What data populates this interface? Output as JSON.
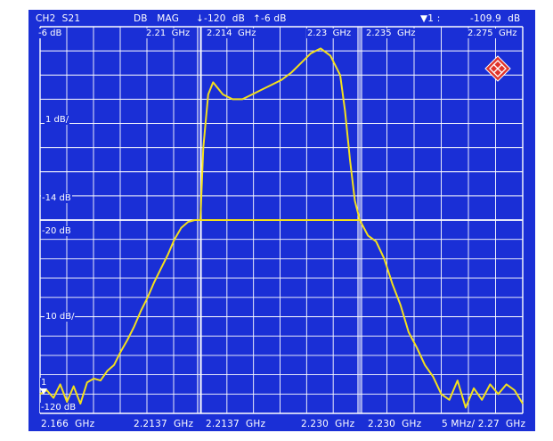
{
  "header": {
    "channel": "CH2  S21",
    "format": "DB   MAG",
    "ref_bottom": "↓-120  dB",
    "ref_top": "↑-6 dB",
    "marker_symbol": "▼1 :",
    "marker_value": "-109.9  dB"
  },
  "upper_panel": {
    "top_label": "-6 dB",
    "scale_label": "1 dB/",
    "bottom_label": "-14 dB",
    "freq_labels": [
      "2.21  GHz",
      "2.214  GHz",
      "2.23  GHz",
      "2.235  GHz",
      "2.275  GHz"
    ]
  },
  "lower_panel": {
    "top_label": "-20 dB",
    "scale_label": "10 dB/",
    "bottom_label": "-120 dB",
    "marker_tag": "1"
  },
  "footer": {
    "labels": [
      "2.166  GHz",
      "2.2137  GHz",
      "2.2137  GHz",
      "2.230  GHz",
      "2.230  GHz",
      "5 MHz/ 2.27  GHz"
    ]
  },
  "colors": {
    "screen_bg": "#1a2fd6",
    "grid": "#ffffff",
    "trace": "#f4e01c",
    "logo": "#e0332a"
  },
  "logo_icon": "rohde-schwarz-diamond-logo",
  "chart_data": {
    "type": "line",
    "title": "",
    "upper_plot": {
      "ylabel": "",
      "ylim_db": [
        -14,
        -6
      ],
      "y_per_div_db": 1,
      "x_ghz": [
        2.2137,
        2.214,
        2.2145,
        2.215,
        2.216,
        2.217,
        2.218,
        2.219,
        2.22,
        2.221,
        2.222,
        2.223,
        2.224,
        2.225,
        2.226,
        2.227,
        2.228,
        2.2285,
        2.229,
        2.2295,
        2.23
      ],
      "y_db": [
        -14.0,
        -11.0,
        -8.8,
        -8.3,
        -8.8,
        -9.0,
        -9.0,
        -8.8,
        -8.6,
        -8.4,
        -8.2,
        -7.9,
        -7.5,
        -7.1,
        -6.9,
        -7.2,
        -8.0,
        -9.5,
        -11.5,
        -13.2,
        -14.0
      ]
    },
    "lower_plot": {
      "ylabel": "",
      "ylim_db": [
        -120,
        -20
      ],
      "y_per_div_db": 10,
      "x_ghz": [
        2.166,
        2.168,
        2.17,
        2.172,
        2.174,
        2.176,
        2.178,
        2.18,
        2.182,
        2.184,
        2.186,
        2.188,
        2.19,
        2.192,
        2.194,
        2.196,
        2.198,
        2.2,
        2.202,
        2.204,
        2.206,
        2.208,
        2.21,
        2.212,
        2.2137,
        2.214,
        2.22,
        2.23,
        2.2305,
        2.232,
        2.234,
        2.236,
        2.238,
        2.24,
        2.242,
        2.244,
        2.246,
        2.248,
        2.25,
        2.252,
        2.254,
        2.256,
        2.258,
        2.26,
        2.262,
        2.264,
        2.266,
        2.268,
        2.27
      ],
      "y_db": [
        -110,
        -108,
        -112,
        -105,
        -114,
        -106,
        -115,
        -104,
        -102,
        -103,
        -98,
        -95,
        -88,
        -82,
        -75,
        -67,
        -60,
        -52,
        -45,
        -38,
        -30,
        -24,
        -21,
        -20,
        -20,
        -20,
        -20,
        -20,
        -22,
        -28,
        -31,
        -40,
        -53,
        -64,
        -78,
        -86,
        -95,
        -101,
        -110,
        -113,
        -103,
        -117,
        -107,
        -113,
        -105,
        -110,
        -105,
        -108,
        -115
      ],
      "marker_1": {
        "x_ghz": 2.166,
        "y_db": -109.9
      }
    }
  }
}
